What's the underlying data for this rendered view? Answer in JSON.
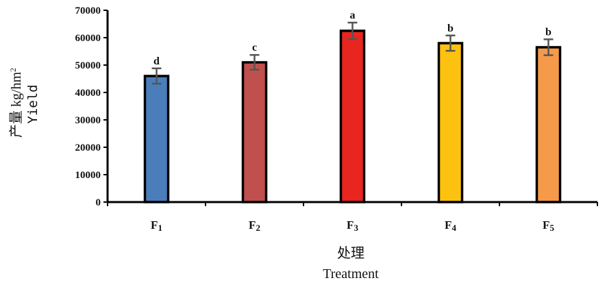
{
  "chart_data": {
    "type": "bar",
    "categories": [
      "F1",
      "F2",
      "F3",
      "F4",
      "F5"
    ],
    "category_labels": [
      {
        "main": "F",
        "sub": "1"
      },
      {
        "main": "F",
        "sub": "2"
      },
      {
        "main": "F",
        "sub": "3"
      },
      {
        "main": "F",
        "sub": "4"
      },
      {
        "main": "F",
        "sub": "5"
      }
    ],
    "values": [
      46000,
      51000,
      62500,
      58000,
      56500
    ],
    "errors": [
      2800,
      2700,
      3000,
      2800,
      2900
    ],
    "significance_letters": [
      "d",
      "c",
      "a",
      "b",
      "b"
    ],
    "bar_colors": [
      "#4a7ebb",
      "#c0504d",
      "#e8251f",
      "#fcc20f",
      "#f59a4a"
    ],
    "ylim": [
      0,
      70000
    ],
    "yticks": [
      "0",
      "10000",
      "20000",
      "30000",
      "40000",
      "50000",
      "60000",
      "70000"
    ],
    "ylabel": {
      "zh": "产量 kg/hm",
      "sup": "2",
      "en": "Yield"
    },
    "xlabel": {
      "zh": "处理",
      "en": "Treatment"
    },
    "grid": false
  }
}
